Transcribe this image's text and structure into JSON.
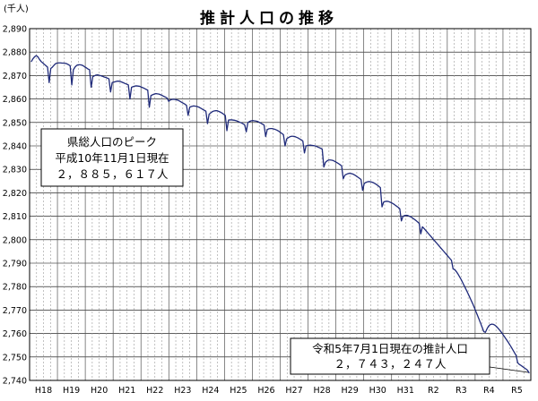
{
  "chart_data": {
    "type": "line",
    "title": "推計人口の推移",
    "y_unit_label": "(千人)",
    "xlabel": "",
    "ylabel": "",
    "ylim": [
      2740,
      2890
    ],
    "y_ticks": [
      "2,740",
      "2,750",
      "2,760",
      "2,770",
      "2,780",
      "2,790",
      "2,800",
      "2,810",
      "2,820",
      "2,830",
      "2,840",
      "2,850",
      "2,860",
      "2,870",
      "2,880",
      "2,890"
    ],
    "x_ticks": [
      "H18",
      "H19",
      "H20",
      "H21",
      "H22",
      "H23",
      "H24",
      "H25",
      "H26",
      "H27",
      "H28",
      "H29",
      "H30",
      "H31",
      "R2",
      "R3",
      "R4",
      "R5"
    ],
    "grid": true,
    "line_color": "#1f2a7a",
    "series": [
      {
        "x_start": "H18-01",
        "interval": "monthly",
        "values": [
          2876.0,
          2877.2,
          2878.0,
          2878.5,
          2878.0,
          2876.9,
          2876.0,
          2875.4,
          2874.8,
          2874.2,
          2873.6,
          2867.0,
          2873.0,
          2873.6,
          2874.4,
          2875.1,
          2875.3,
          2875.4,
          2875.4,
          2875.3,
          2875.3,
          2875.2,
          2875.0,
          2874.6,
          2874.2,
          2866.0,
          2872.5,
          2873.6,
          2874.3,
          2874.6,
          2874.6,
          2874.5,
          2874.2,
          2873.7,
          2873.3,
          2872.8,
          2872.5,
          2865.0,
          2869.5,
          2869.9,
          2870.2,
          2870.3,
          2870.1,
          2869.9,
          2869.7,
          2869.4,
          2869.2,
          2868.9,
          2868.6,
          2863.0,
          2867.0,
          2867.2,
          2867.4,
          2867.6,
          2867.6,
          2867.5,
          2867.2,
          2866.9,
          2866.6,
          2866.3,
          2866.0,
          2860.0,
          2865.0,
          2865.3,
          2865.5,
          2865.6,
          2865.5,
          2865.4,
          2865.1,
          2864.8,
          2864.5,
          2864.1,
          2863.8,
          2856.5,
          2861.5,
          2861.8,
          2862.1,
          2862.3,
          2862.2,
          2862.1,
          2861.8,
          2861.5,
          2861.1,
          2860.8,
          2860.4,
          2859.0,
          2859.6,
          2859.8,
          2859.9,
          2859.8,
          2859.6,
          2859.4,
          2859.0,
          2858.6,
          2858.2,
          2857.8,
          2857.3,
          2853.0,
          2856.5,
          2856.8,
          2857.0,
          2857.0,
          2856.9,
          2856.7,
          2856.4,
          2856.0,
          2855.6,
          2855.2,
          2854.8,
          2849.5,
          2853.5,
          2854.1,
          2854.6,
          2854.9,
          2855.0,
          2855.0,
          2854.7,
          2854.4,
          2854.0,
          2853.5,
          2853.0,
          2846.5,
          2851.0,
          2851.1,
          2851.1,
          2851.0,
          2850.9,
          2850.7,
          2850.4,
          2850.1,
          2849.8,
          2849.4,
          2849.0,
          2846.0,
          2850.0,
          2850.4,
          2850.7,
          2850.8,
          2850.7,
          2850.6,
          2850.4,
          2850.1,
          2849.7,
          2849.3,
          2848.9,
          2844.0,
          2847.0,
          2847.3,
          2847.4,
          2847.4,
          2847.2,
          2847.0,
          2846.7,
          2846.3,
          2845.8,
          2845.3,
          2844.8,
          2840.0,
          2843.0,
          2843.5,
          2843.9,
          2844.1,
          2844.1,
          2844.0,
          2843.7,
          2843.4,
          2843.0,
          2842.6,
          2842.1,
          2837.0,
          2840.0,
          2840.2,
          2840.3,
          2840.3,
          2840.2,
          2840.1,
          2839.9,
          2839.6,
          2839.3,
          2839.0,
          2838.6,
          2831.0,
          2833.0,
          2833.6,
          2834.0,
          2834.0,
          2833.9,
          2833.7,
          2833.3,
          2832.9,
          2832.5,
          2832.0,
          2831.5,
          2826.0,
          2827.5,
          2827.9,
          2828.2,
          2828.3,
          2828.2,
          2828.0,
          2827.6,
          2827.2,
          2826.7,
          2826.2,
          2825.7,
          2821.0,
          2824.0,
          2824.4,
          2824.7,
          2824.8,
          2824.7,
          2824.5,
          2824.2,
          2823.8,
          2823.3,
          2822.8,
          2822.2,
          2814.0,
          2816.0,
          2816.3,
          2816.4,
          2816.3,
          2816.0,
          2815.7,
          2815.3,
          2814.8,
          2814.3,
          2813.8,
          2813.2,
          2808.0,
          2810.0,
          2810.3,
          2810.4,
          2810.3,
          2810.0,
          2809.7,
          2809.2,
          2808.7,
          2808.2,
          2807.6,
          2807.0,
          2802.5,
          2805.5,
          2804.8,
          2804.0,
          2803.2,
          2802.4,
          2801.6,
          2800.8,
          2800.0,
          2799.2,
          2798.4,
          2797.6,
          2796.8,
          2796.0,
          2795.2,
          2794.4,
          2793.6,
          2792.8,
          2792.0,
          2791.2,
          2787.5,
          2787.3,
          2786.4,
          2785.4,
          2784.2,
          2783.0,
          2781.6,
          2780.2,
          2778.8,
          2777.4,
          2775.9,
          2774.4,
          2772.9,
          2771.3,
          2769.6,
          2767.9,
          2766.2,
          2764.4,
          2762.6,
          2760.8,
          2760.5,
          2762.0,
          2763.2,
          2763.8,
          2764.0,
          2763.9,
          2763.5,
          2762.9,
          2762.1,
          2761.3,
          2760.4,
          2759.4,
          2758.4,
          2757.4,
          2756.4,
          2755.3,
          2754.2,
          2753.0,
          2751.8,
          2750.6,
          2747.5,
          2746.8,
          2746.4,
          2745.9,
          2745.4,
          2744.9,
          2744.4,
          2743.247
        ]
      }
    ]
  },
  "annotations": {
    "peak": {
      "line1": "県総人口のピーク",
      "line2": "平成10年11月1日現在",
      "line3": "２，８８５，６１７人"
    },
    "current": {
      "line1": "令和5年7月1日現在の推計人口",
      "line2": "２，７４３，２４７人"
    }
  }
}
